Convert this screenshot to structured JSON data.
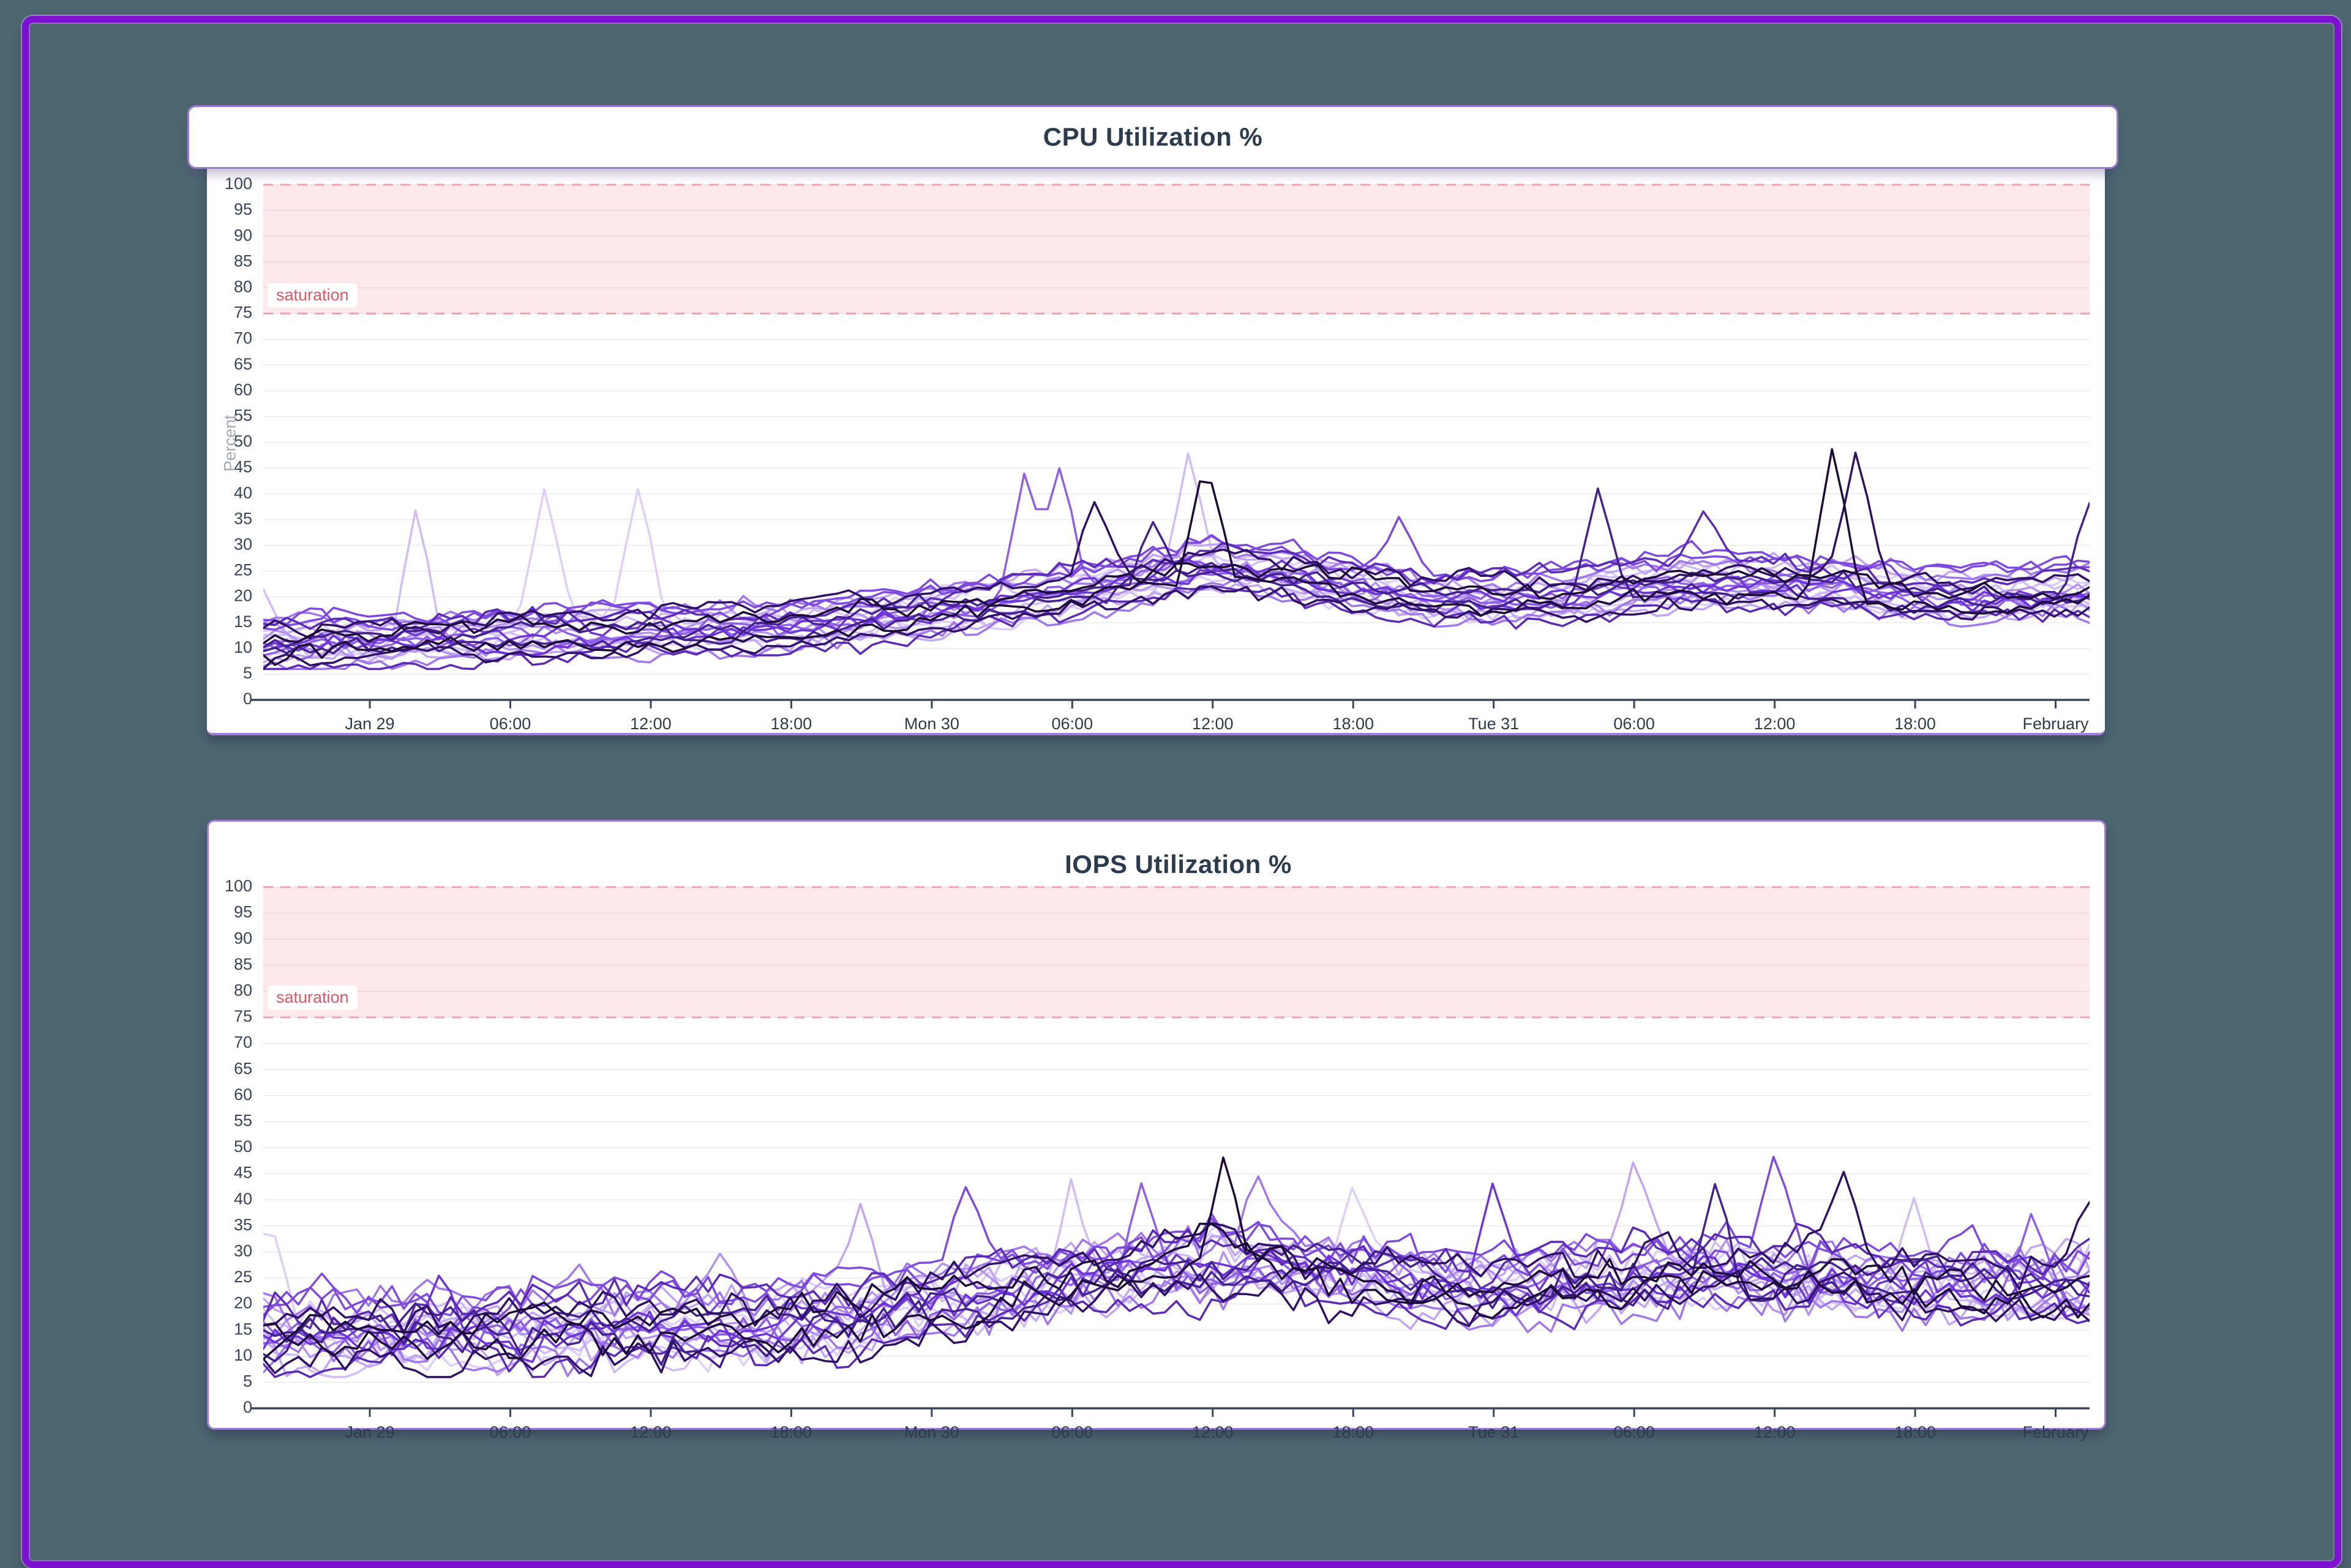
{
  "page": {
    "background_color": "#4d6771",
    "frame_border_color": "#7d11d0",
    "card_border_color": "#9b7bd3"
  },
  "chart_data": [
    {
      "type": "line",
      "title": "CPU Utilization %",
      "ylabel": "Percent",
      "y_min": 0,
      "y_max": 100,
      "y_ticks": [
        0,
        5,
        10,
        15,
        20,
        25,
        30,
        35,
        40,
        45,
        50,
        55,
        60,
        65,
        70,
        75,
        80,
        85,
        90,
        95,
        100
      ],
      "x_ticks": [
        "Jan 29",
        "06:00",
        "12:00",
        "18:00",
        "Mon 30",
        "06:00",
        "12:00",
        "18:00",
        "Tue 31",
        "06:00",
        "12:00",
        "18:00",
        "February"
      ],
      "x_tick_hours": [
        0,
        6,
        12,
        18,
        24,
        30,
        36,
        42,
        48,
        54,
        60,
        66,
        72
      ],
      "x_start_hour": -4.55,
      "x_end_hour": 73.45,
      "grid": true,
      "legend": "none",
      "threshold_region": {
        "from": 75,
        "to": 100,
        "label": "saturation",
        "fill": "#ef5d75",
        "fill_opacity": 0.14,
        "dash_color": "#f2a3b1",
        "text_color": "#e25766"
      },
      "series_count": 24,
      "palette_dark_to_light": [
        "#1c0b38",
        "#2e1065",
        "#43218f",
        "#5b2bb8",
        "#6d35d9",
        "#7e4ae0",
        "#8f5fe6",
        "#a178ec",
        "#b392f0",
        "#c2a6f3",
        "#d0bcf6",
        "#ddcffa"
      ],
      "line_width": 3.5,
      "sample_step_hours": 0.5,
      "band_median": {
        "hours": [
          -6,
          -3,
          0,
          3,
          6,
          9,
          12,
          15,
          18,
          21,
          24,
          27,
          30,
          33,
          36,
          39,
          42,
          45,
          48,
          51,
          54,
          57,
          60,
          63,
          66,
          69,
          72,
          75
        ],
        "values": [
          11,
          11,
          11.5,
          12,
          12.5,
          13,
          13.5,
          13.5,
          14.5,
          16,
          17.5,
          19,
          21,
          23.5,
          26,
          24.5,
          22,
          20,
          19.5,
          20.5,
          22,
          23,
          23,
          22,
          20.5,
          20,
          20.5,
          22
        ]
      },
      "band_halfwidth": 4.5,
      "noise_sigma": 1.5,
      "seed": 11,
      "spikes": [
        {
          "h": -4.5,
          "v": 22,
          "series": 13
        },
        {
          "h": 2.0,
          "v": 38,
          "series": 13
        },
        {
          "h": 7.5,
          "v": 42,
          "series": 12
        },
        {
          "h": 11.5,
          "v": 42,
          "series": 12
        },
        {
          "h": 28.0,
          "v": 45,
          "series": 17
        },
        {
          "h": 29.5,
          "v": 46,
          "series": 17
        },
        {
          "h": 31.0,
          "v": 39,
          "series": 1
        },
        {
          "h": 33.5,
          "v": 35,
          "series": 2
        },
        {
          "h": 35.0,
          "v": 49,
          "series": 13
        },
        {
          "h": 35.7,
          "v": 47,
          "series": 0
        },
        {
          "h": 44.0,
          "v": 36,
          "series": 18
        },
        {
          "h": 52.5,
          "v": 42,
          "series": 2
        },
        {
          "h": 57.0,
          "v": 37,
          "series": 3
        },
        {
          "h": 62.5,
          "v": 50,
          "series": 0
        },
        {
          "h": 63.5,
          "v": 49,
          "series": 1
        },
        {
          "h": 73.4,
          "v": 39,
          "series": 2
        }
      ]
    },
    {
      "type": "line",
      "title": "IOPS Utilization %",
      "ylabel": null,
      "y_min": 0,
      "y_max": 100,
      "y_ticks": [
        0,
        5,
        10,
        15,
        20,
        25,
        30,
        35,
        40,
        45,
        50,
        55,
        60,
        65,
        70,
        75,
        80,
        85,
        90,
        95,
        100
      ],
      "x_ticks": [
        "Jan 29",
        "06:00",
        "12:00",
        "18:00",
        "Mon 30",
        "06:00",
        "12:00",
        "18:00",
        "Tue 31",
        "06:00",
        "12:00",
        "18:00",
        "February"
      ],
      "x_tick_hours": [
        0,
        6,
        12,
        18,
        24,
        30,
        36,
        42,
        48,
        54,
        60,
        66,
        72
      ],
      "x_start_hour": -4.55,
      "x_end_hour": 73.45,
      "grid": true,
      "legend": "none",
      "threshold_region": {
        "from": 75,
        "to": 100,
        "label": "saturation",
        "fill": "#ef5d75",
        "fill_opacity": 0.14,
        "dash_color": "#f2a3b1",
        "text_color": "#e25766"
      },
      "series_count": 24,
      "palette_dark_to_light": [
        "#1c0b38",
        "#2e1065",
        "#43218f",
        "#5b2bb8",
        "#6d35d9",
        "#7e4ae0",
        "#8f5fe6",
        "#a178ec",
        "#b392f0",
        "#c2a6f3",
        "#d0bcf6",
        "#ddcffa"
      ],
      "line_width": 3.5,
      "sample_step_hours": 0.5,
      "band_median": {
        "hours": [
          -6,
          -3,
          0,
          3,
          6,
          9,
          12,
          15,
          18,
          21,
          24,
          27,
          30,
          33,
          36,
          39,
          42,
          45,
          48,
          51,
          54,
          57,
          60,
          63,
          66,
          69,
          72,
          75
        ],
        "values": [
          14,
          14,
          14,
          14.5,
          15,
          15.5,
          16,
          16,
          17,
          19,
          21,
          23,
          25,
          27,
          28.5,
          27,
          25,
          23.5,
          23,
          24,
          25.5,
          26,
          26,
          25,
          24,
          23.5,
          23,
          24
        ]
      },
      "band_halfwidth": 5.5,
      "noise_sigma": 3.0,
      "seed": 29,
      "spikes": [
        {
          "h": -4.3,
          "v": 37,
          "series": 12
        },
        {
          "h": 3.0,
          "v": 26,
          "series": 4
        },
        {
          "h": 9.0,
          "v": 28,
          "series": 16
        },
        {
          "h": 15.0,
          "v": 30,
          "series": 8
        },
        {
          "h": 21.0,
          "v": 40,
          "series": 14
        },
        {
          "h": 25.5,
          "v": 43,
          "series": 18
        },
        {
          "h": 30.0,
          "v": 45,
          "series": 13
        },
        {
          "h": 33.0,
          "v": 44,
          "series": 17
        },
        {
          "h": 36.5,
          "v": 49,
          "series": 0
        },
        {
          "h": 38.0,
          "v": 45,
          "series": 16
        },
        {
          "h": 42.0,
          "v": 43,
          "series": 12
        },
        {
          "h": 48.0,
          "v": 44,
          "series": 19
        },
        {
          "h": 54.0,
          "v": 48,
          "series": 14
        },
        {
          "h": 57.5,
          "v": 44,
          "series": 2
        },
        {
          "h": 60.0,
          "v": 49,
          "series": 18
        },
        {
          "h": 63.0,
          "v": 46,
          "series": 1
        },
        {
          "h": 66.0,
          "v": 41,
          "series": 13
        },
        {
          "h": 71.0,
          "v": 38,
          "series": 17
        },
        {
          "h": 73.4,
          "v": 40,
          "series": 1
        }
      ]
    }
  ]
}
